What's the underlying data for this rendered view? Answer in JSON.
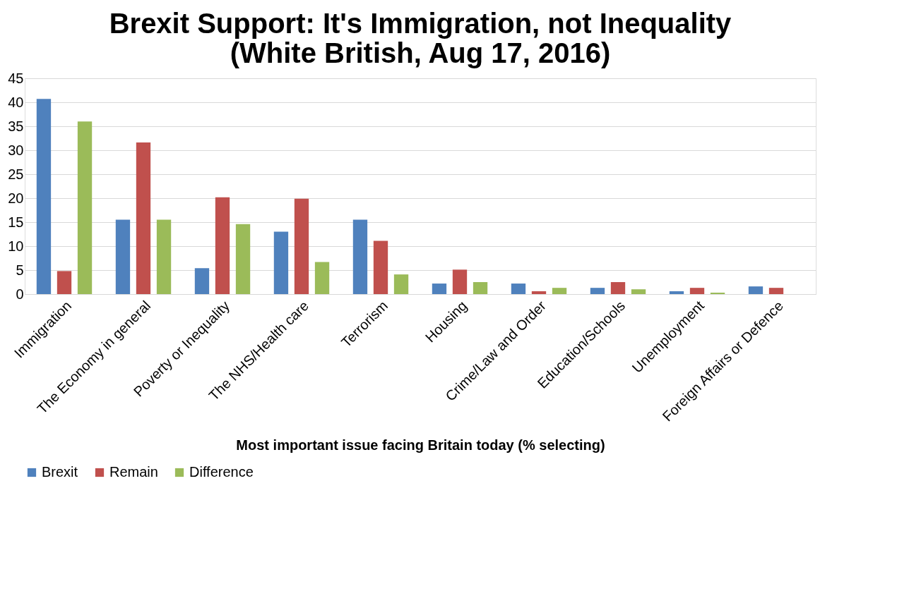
{
  "chart_data": {
    "type": "bar",
    "title": [
      "Brexit Support: It's Immigration, not Inequality",
      "(White British, Aug 17, 2016)"
    ],
    "xlabel": "Most important issue facing  Britain today (% selecting)",
    "categories": [
      "Immigration",
      "The Economy in general",
      "Poverty or Inequality",
      "The NHS/Health care",
      "Terrorism",
      "Housing",
      "Crime/Law and Order",
      "Education/Schools",
      "Unemployment",
      "Foreign Affairs or Defence"
    ],
    "series": [
      {
        "name": "Brexit",
        "color": "#4f81bd",
        "values": [
          40.7,
          15.5,
          5.4,
          13.0,
          15.5,
          2.2,
          2.2,
          1.3,
          0.6,
          1.6
        ]
      },
      {
        "name": "Remain",
        "color": "#c0504d",
        "values": [
          4.8,
          31.6,
          20.2,
          19.9,
          11.1,
          5.1,
          0.6,
          2.5,
          1.3,
          1.3
        ]
      },
      {
        "name": "Difference",
        "color": "#9bbb59",
        "values": [
          36.0,
          15.5,
          14.6,
          6.7,
          4.1,
          2.5,
          1.3,
          1.0,
          0.3,
          0
        ]
      }
    ],
    "ylim": [
      0,
      45
    ],
    "yticks": [
      0,
      5,
      10,
      15,
      20,
      25,
      30,
      35,
      40,
      45
    ],
    "grid": "y",
    "legend": "bottom"
  }
}
